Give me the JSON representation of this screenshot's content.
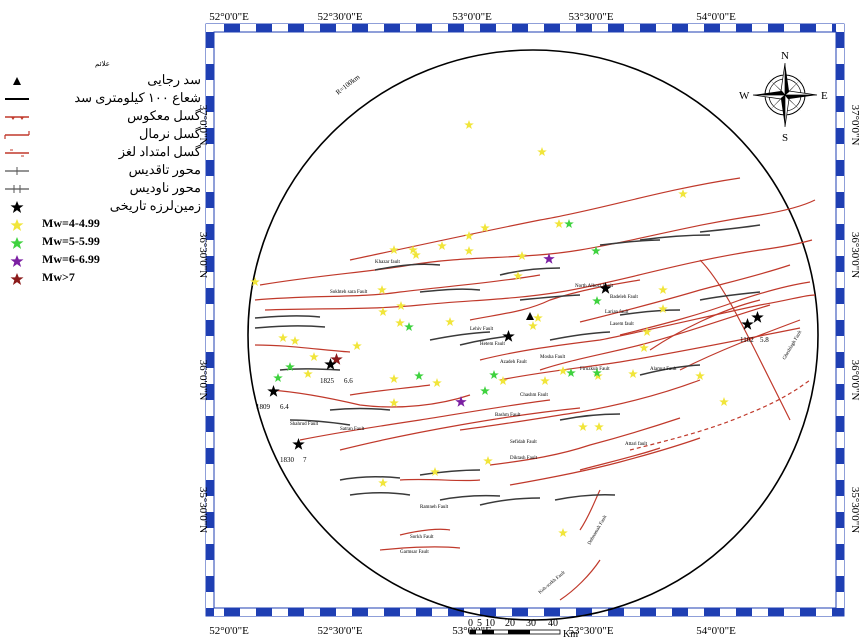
{
  "legend": {
    "title": "علائم",
    "items": [
      {
        "label": "سد رجایی",
        "kind": "dam"
      },
      {
        "label": "شعاع ۱۰۰ کیلومتری سد",
        "kind": "radius"
      },
      {
        "label": "گسل معکوس",
        "kind": "reverse-fault"
      },
      {
        "label": "گسل نرمال",
        "kind": "normal-fault"
      },
      {
        "label": "گسل امتداد لغز",
        "kind": "strike-slip-fault"
      },
      {
        "label": "محور تاقدیس",
        "kind": "anticline"
      },
      {
        "label": "محور ناودیس",
        "kind": "syncline"
      },
      {
        "label": "زمین‌لرزه تاریخی",
        "kind": "historical-eq"
      },
      {
        "label": "Mw=4-4.99",
        "kind": "mw4",
        "color": "#f1e53b"
      },
      {
        "label": "Mw=5-5.99",
        "kind": "mw5",
        "color": "#3fd23f"
      },
      {
        "label": "Mw=6-6.99",
        "kind": "mw6",
        "color": "#7b1fa2"
      },
      {
        "label": "Mw>7",
        "kind": "mw7",
        "color": "#8b1a1a"
      }
    ]
  },
  "top_axis": [
    "52°0'0\"E",
    "52°30'0\"E",
    "53°0'0\"E",
    "53°30'0\"E",
    "54°0'0\"E"
  ],
  "bottom_axis": [
    "52°0'0\"E",
    "52°30'0\"E",
    "53°0'0\"E",
    "53°30'0\"E",
    "54°0'0\"E"
  ],
  "left_axis": [
    "37°0'0\"N",
    "36°30'0\"N",
    "36°0'0\"N",
    "35°30'0\"N"
  ],
  "right_axis": [
    "37°0'0\"N",
    "36°30'0\"N",
    "36°0'0\"N",
    "35°30'0\"N"
  ],
  "radius_label": "R=100km",
  "compass": {
    "n": "N",
    "s": "S",
    "e": "E",
    "w": "W"
  },
  "scale": {
    "ticks": [
      "0",
      "5",
      "10",
      "20",
      "30",
      "40"
    ],
    "unit": "Km"
  },
  "faults": {
    "khazar": "Khazar fault",
    "sokhteh": "Sokhteh sara Fault",
    "north_alborz": "North Alborz Fault",
    "badeleh": "Badeleh Fault",
    "larian": "Larian fault",
    "lasem": "Lasem fault",
    "lehiv": "Lehiv Fault",
    "hetem": "Hetem Fault",
    "azadeh": "Azadeh Fault",
    "mosha": "Mosha Fault",
    "chashm": "Chashm Fault",
    "bashm": "Bashm Fault",
    "sefidab": "Sefidab Fault",
    "diktash": "Diktash Fault",
    "attari": "Attari fault",
    "ramneh": "Ramneh Fault",
    "sorkh": "Sorkh Fault",
    "garmsar": "Garmsar Fault",
    "kuh_sorkh": "Koh-sorkh Fault",
    "dehnamak": "Dehnamak Fault",
    "firuzkuh": "Firuzkuh Fault",
    "alamut": "Alamut Fault",
    "satran": "Satran Fault",
    "shahrud": "Shahrud Fault",
    "gheshlagh": "Gheshlagh Fault"
  },
  "eq_labels": {
    "e1825": "1825",
    "e66": "6.6",
    "e1809": "1809",
    "e64": "6.4",
    "e1830": "1830",
    "e7": "7",
    "e1102": "1102",
    "e58": "5.8"
  }
}
